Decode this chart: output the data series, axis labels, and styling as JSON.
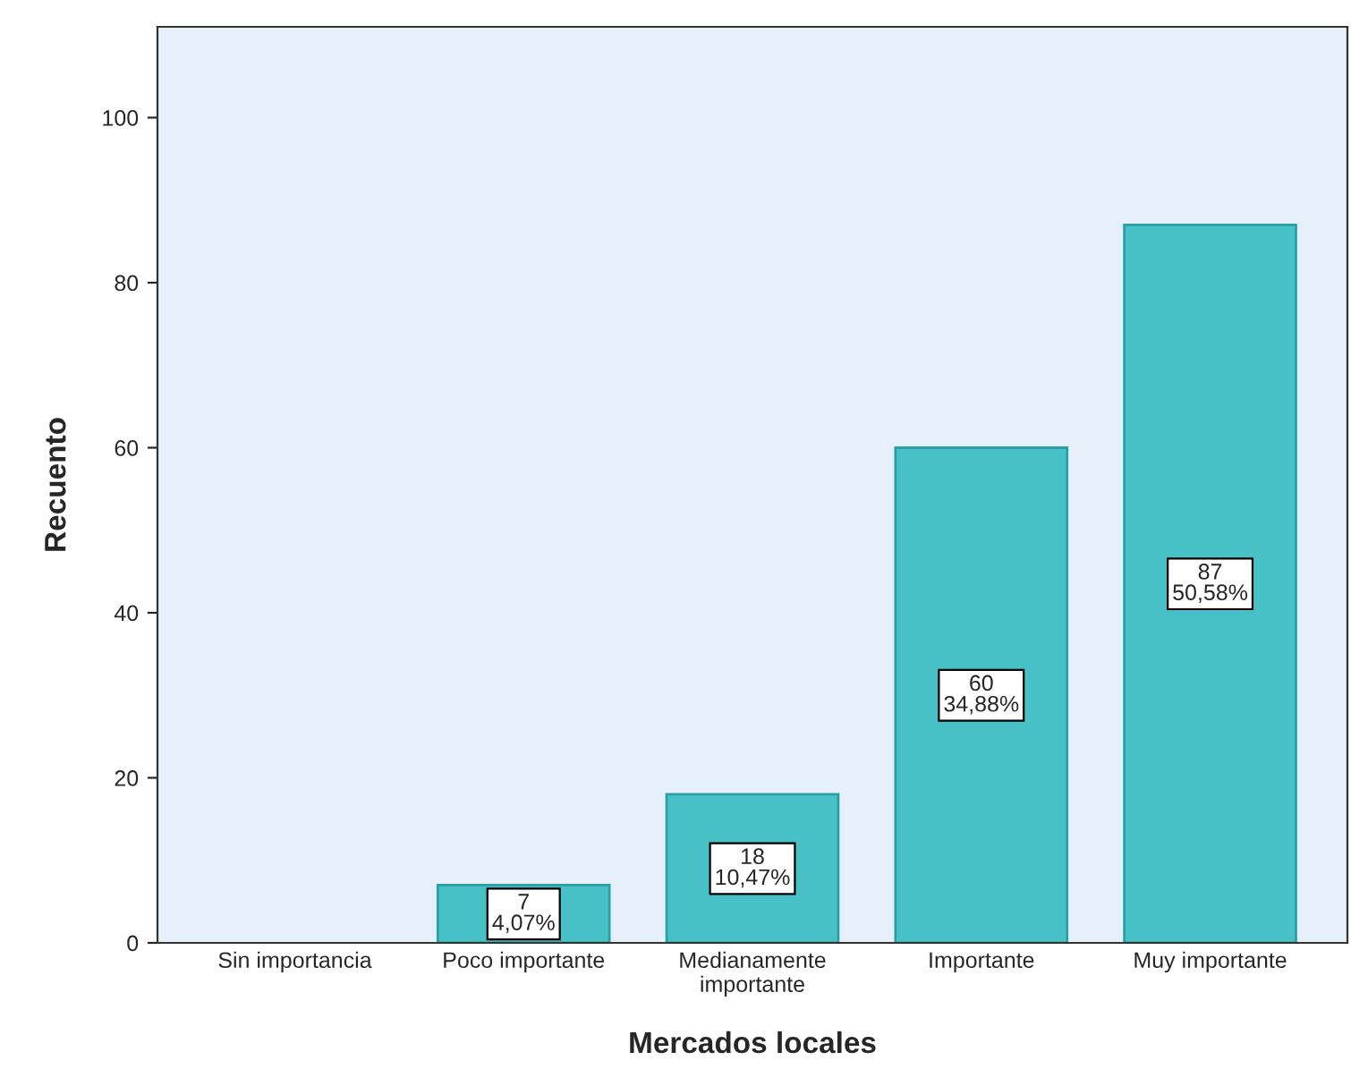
{
  "chart_data": {
    "type": "bar",
    "xlabel": "Mercados locales",
    "ylabel": "Recuento",
    "categories": [
      "Sin importancia",
      "Poco importante",
      "Medianamente\nimportante",
      "Importante",
      "Muy importante"
    ],
    "values": [
      0,
      7,
      18,
      60,
      87
    ],
    "value_labels": [
      null,
      "7\n4,07%",
      "18\n10,47%",
      "60\n34,88%",
      "87\n50,58%"
    ],
    "color": "#48c1c6",
    "ylim": [
      0,
      111
    ],
    "yticks": [
      0,
      20,
      40,
      60,
      80,
      100
    ],
    "grid": false
  }
}
